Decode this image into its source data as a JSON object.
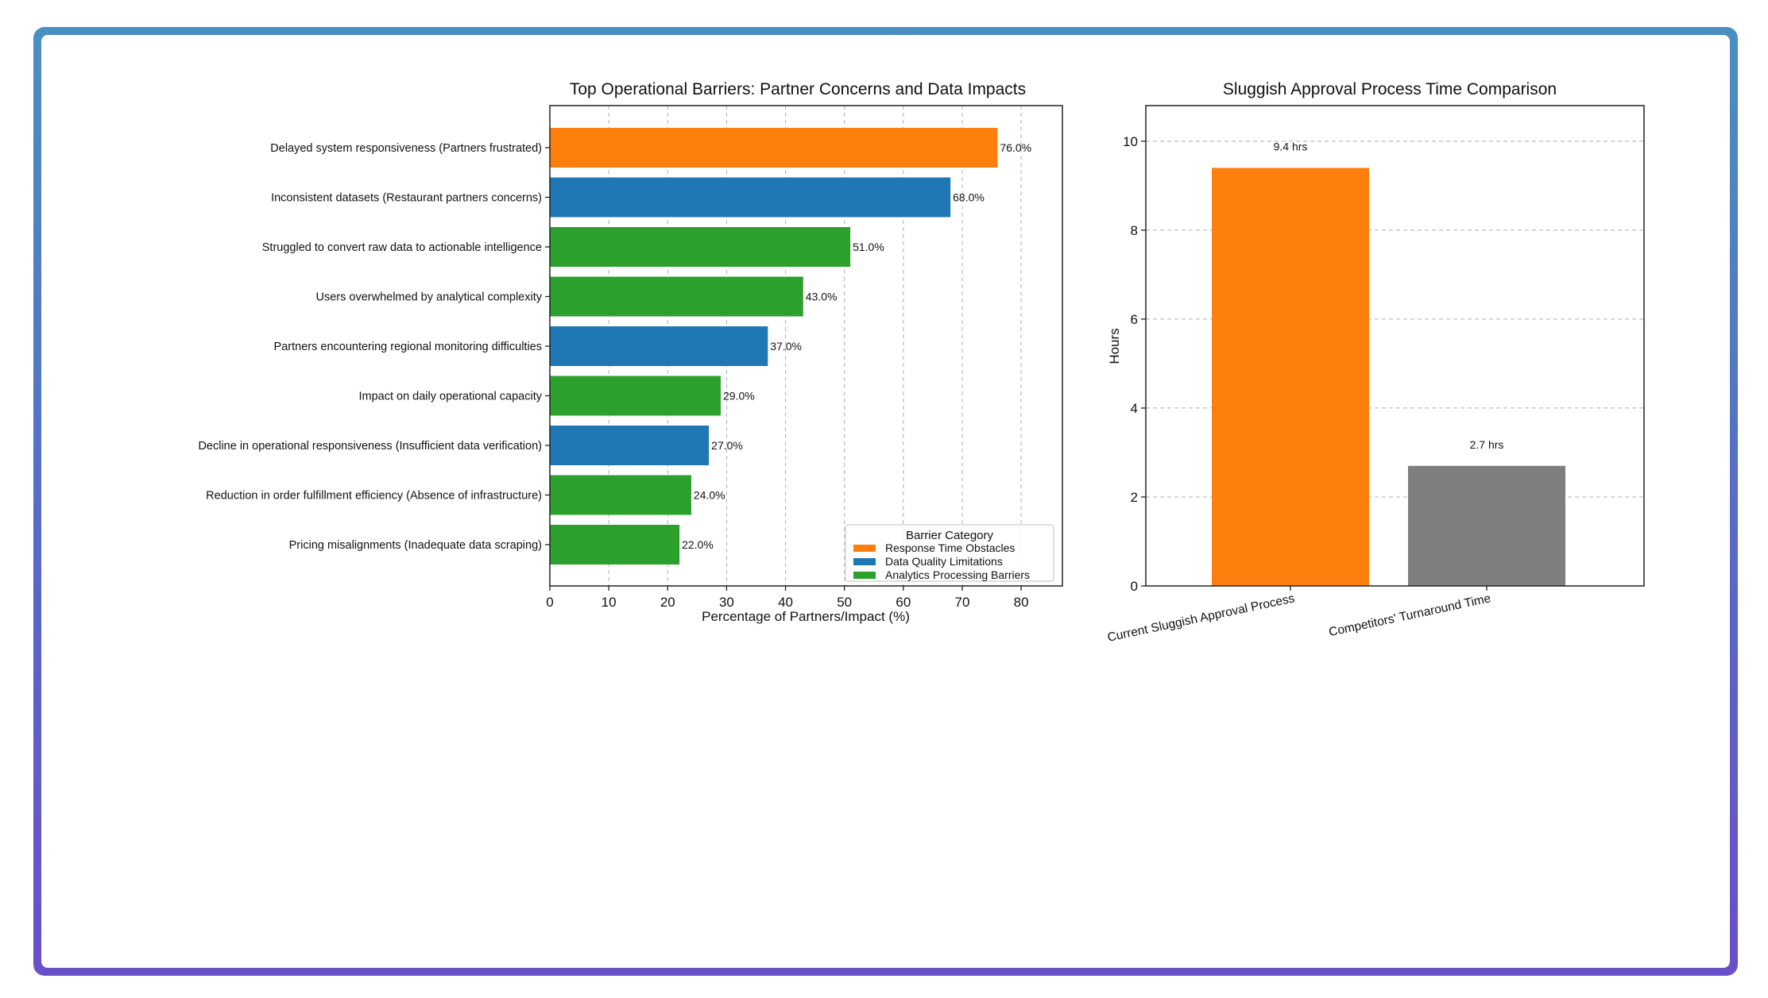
{
  "chart_data": [
    {
      "type": "bar",
      "orientation": "horizontal",
      "title": "Top Operational Barriers: Partner Concerns and Data Impacts",
      "xlabel": "Percentage of Partners/Impact (%)",
      "ylabel": "",
      "xlim": [
        0,
        87
      ],
      "xticks": [
        0,
        10,
        20,
        30,
        40,
        50,
        60,
        70,
        80
      ],
      "grid": "x-dashed",
      "categories": [
        "Delayed system responsiveness (Partners frustrated)",
        "Inconsistent datasets (Restaurant partners concerns)",
        "Struggled to convert raw data to actionable intelligence",
        "Users overwhelmed by analytical complexity",
        "Partners encountering regional monitoring difficulties",
        "Impact on daily operational capacity",
        "Decline in operational responsiveness (Insufficient data verification)",
        "Reduction in order fulfillment efficiency (Absence of infrastructure)",
        "Pricing misalignments (Inadequate data scraping)"
      ],
      "values": [
        76.0,
        68.0,
        51.0,
        43.0,
        37.0,
        29.0,
        27.0,
        24.0,
        22.0
      ],
      "value_labels": [
        "76.0%",
        "68.0%",
        "51.0%",
        "43.0%",
        "37.0%",
        "29.0%",
        "27.0%",
        "24.0%",
        "22.0%"
      ],
      "bar_category": [
        "Response Time Obstacles",
        "Data Quality Limitations",
        "Analytics Processing Barriers",
        "Analytics Processing Barriers",
        "Data Quality Limitations",
        "Analytics Processing Barriers",
        "Data Quality Limitations",
        "Analytics Processing Barriers",
        "Analytics Processing Barriers"
      ],
      "legend": {
        "title": "Barrier Category",
        "placement": "lower-right",
        "entries": [
          {
            "label": "Response Time Obstacles",
            "color": "#ff7f0e"
          },
          {
            "label": "Data Quality Limitations",
            "color": "#1f77b4"
          },
          {
            "label": "Analytics Processing Barriers",
            "color": "#2ca02c"
          }
        ]
      }
    },
    {
      "type": "bar",
      "orientation": "vertical",
      "title": "Sluggish Approval Process Time Comparison",
      "xlabel": "",
      "ylabel": "Hours",
      "ylim": [
        0,
        10.8
      ],
      "yticks": [
        0,
        2,
        4,
        6,
        8,
        10
      ],
      "grid": "y-dashed",
      "categories": [
        "Current Sluggish Approval Process",
        "Competitors' Turnaround Time"
      ],
      "values": [
        9.4,
        2.7
      ],
      "value_labels": [
        "9.4 hrs",
        "2.7 hrs"
      ],
      "colors": [
        "#ff7f0e",
        "#7f7f7f"
      ]
    }
  ]
}
